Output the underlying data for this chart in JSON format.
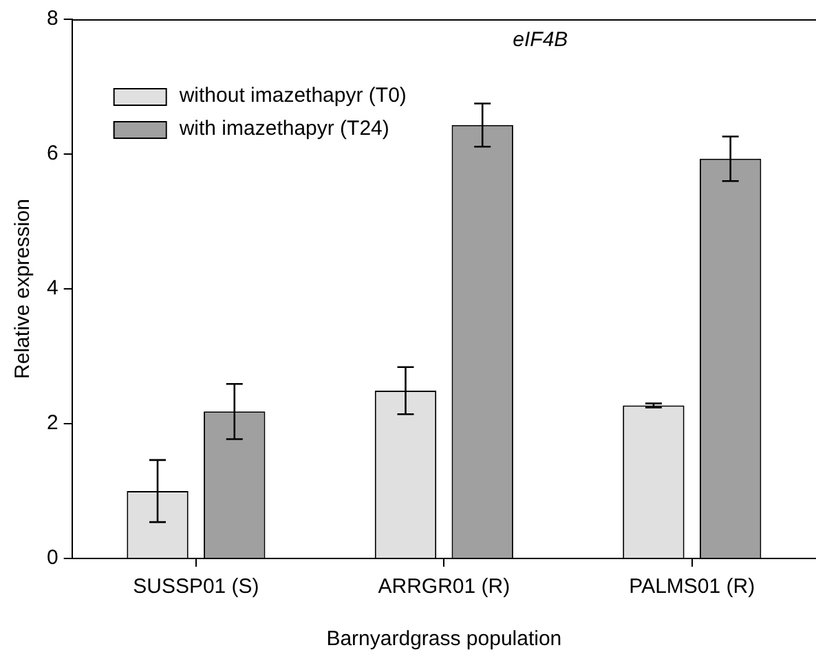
{
  "chart_data": {
    "type": "bar",
    "title": "eIF4B",
    "xlabel": "Barnyardgrass population",
    "ylabel": "Relative expression",
    "categories": [
      "SUSSP01 (S)",
      "ARRGR01 (R)",
      "PALMS01 (R)"
    ],
    "series": [
      {
        "name": "without imazethapyr (T0)",
        "color": "#e0e0e0",
        "values": [
          1.0,
          2.49,
          2.27
        ],
        "errors": [
          0.46,
          0.35,
          0.03
        ]
      },
      {
        "name": "with imazethapyr (T24)",
        "color": "#a0a0a0",
        "values": [
          2.18,
          6.43,
          5.93
        ],
        "errors": [
          0.41,
          0.32,
          0.33
        ]
      }
    ],
    "ylim": [
      0,
      8
    ],
    "yticks": [
      0,
      2,
      4,
      6,
      8
    ],
    "grid": false,
    "legend": "top left"
  }
}
